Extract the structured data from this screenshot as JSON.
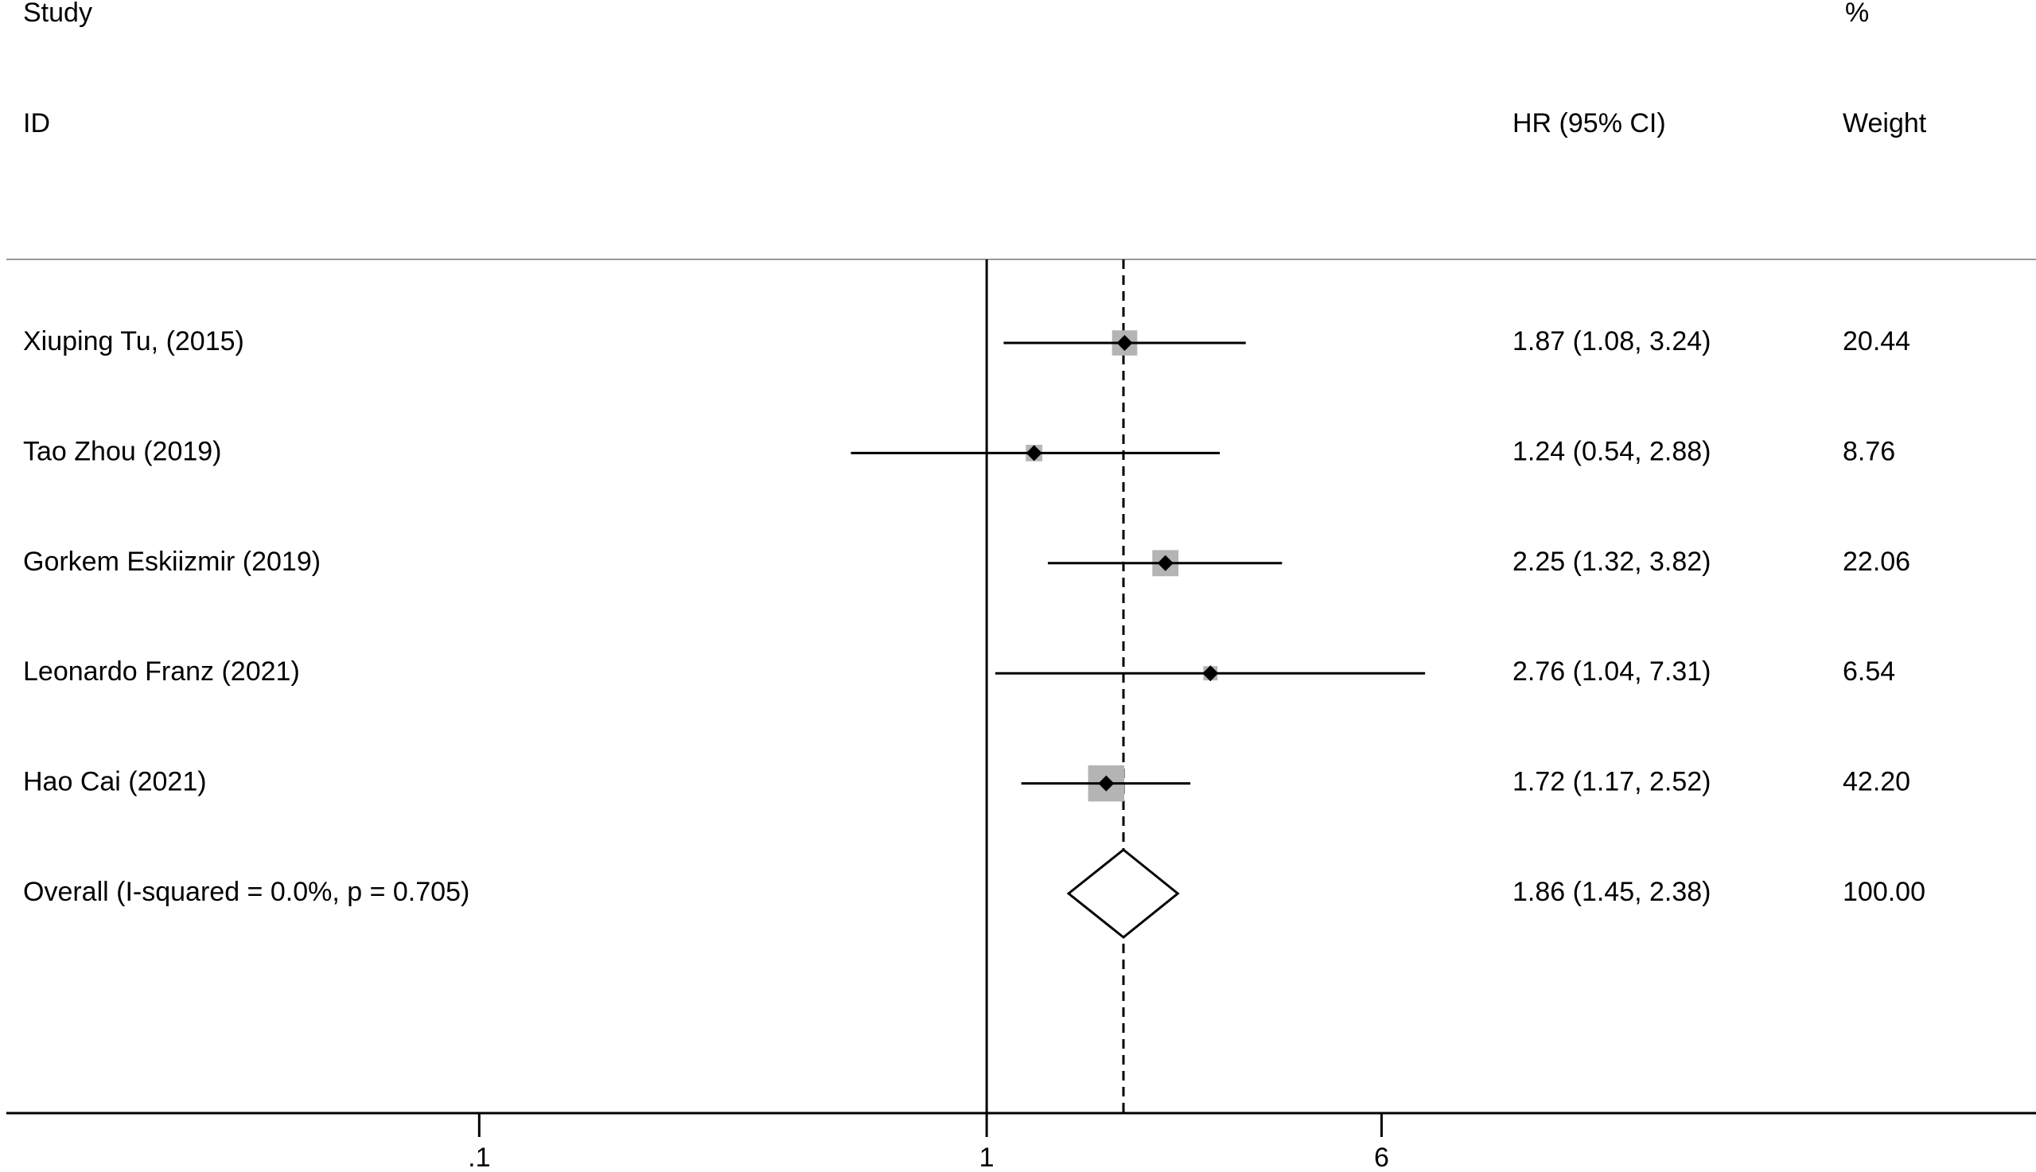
{
  "chart_data": {
    "type": "forest",
    "headers": {
      "study": "Study",
      "id": "ID",
      "effect": "HR (95% CI)",
      "percent": "%",
      "weight": "Weight"
    },
    "categories": [
      "Xiuping Tu,  (2015)",
      "Tao Zhou (2019)",
      "Gorkem Eskiizmir (2019)",
      "Leonardo Franz (2021)",
      "Hao Cai (2021)"
    ],
    "hr": [
      1.87,
      1.24,
      2.25,
      2.76,
      1.72
    ],
    "ci_lower": [
      1.08,
      0.54,
      1.32,
      1.04,
      1.17
    ],
    "ci_upper": [
      3.24,
      2.88,
      3.82,
      7.31,
      2.52
    ],
    "value_labels": [
      "1.87 (1.08, 3.24)",
      "1.24 (0.54, 2.88)",
      "2.25 (1.32, 3.82)",
      "2.76 (1.04, 7.31)",
      "1.72 (1.17, 2.52)"
    ],
    "weights": [
      20.44,
      8.76,
      22.06,
      6.54,
      42.2
    ],
    "weight_labels": [
      "20.44",
      "8.76",
      "22.06",
      "6.54",
      "42.20"
    ],
    "overall": {
      "label": "Overall  (I-squared = 0.0%, p = 0.705)",
      "hr": 1.86,
      "ci_lower": 1.45,
      "ci_upper": 2.38,
      "value_label": "1.86 (1.45, 2.38)",
      "weight": 100,
      "weight_label": "100.00"
    },
    "log_scale": true,
    "null_line": 1,
    "xlim": [
      0.0117,
      114.8
    ],
    "xticks": [
      {
        "value": 0.1,
        "label": ".1"
      },
      1,
      6
    ],
    "box_color": "#b4b4b4"
  }
}
